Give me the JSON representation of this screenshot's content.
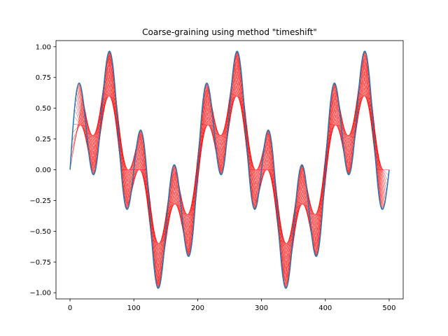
{
  "chart_data": {
    "type": "line",
    "title": "Coarse-graining using method \"timeshift\"",
    "xlabel": "",
    "ylabel": "",
    "xlim": [
      -22,
      522
    ],
    "ylim": [
      -1.05,
      1.05
    ],
    "xticks": [
      0,
      100,
      200,
      300,
      400,
      500
    ],
    "yticks": [
      -1.0,
      -0.75,
      -0.5,
      -0.25,
      0.0,
      0.25,
      0.5,
      0.75,
      1.0
    ],
    "xtick_labels": [
      "0",
      "100",
      "200",
      "300",
      "400",
      "500"
    ],
    "ytick_labels": [
      "−1.00",
      "−0.75",
      "−0.50",
      "−0.25",
      "0.00",
      "0.25",
      "0.50",
      "0.75",
      "1.00"
    ],
    "grid": false,
    "series": [
      {
        "kind": "signal",
        "color": "#1f77b4",
        "formula": "0.5*sin(2*pi*x/200) + 0.5*sin(2*pi*x/50) (approx.)",
        "x": [
          0,
          10,
          13,
          20,
          37,
          50,
          62,
          75,
          90,
          100,
          110,
          125,
          138,
          150,
          163,
          175,
          190,
          200,
          213,
          225,
          240,
          250,
          262,
          275,
          290,
          300,
          310,
          325,
          338,
          350,
          363,
          375,
          390,
          400,
          413,
          425,
          440,
          450,
          462,
          475,
          490,
          500
        ],
        "y": [
          0.0,
          0.66,
          0.71,
          0.6,
          0.1,
          0.5,
          0.96,
          0.5,
          -0.3,
          -0.1,
          0.31,
          -0.3,
          -0.96,
          -0.5,
          0.04,
          -0.5,
          -0.9,
          0.0,
          0.71,
          0.5,
          0.15,
          0.5,
          0.96,
          0.5,
          -0.3,
          -0.1,
          0.31,
          -0.3,
          -0.96,
          -0.5,
          0.04,
          -0.5,
          -0.9,
          0.0,
          0.71,
          0.5,
          0.15,
          0.5,
          0.96,
          0.5,
          -0.32,
          -0.05
        ]
      },
      {
        "kind": "timeshift-segments",
        "color": "#ff0000",
        "segment_span": 20,
        "x_start": 0,
        "x_end": 480
      }
    ]
  }
}
